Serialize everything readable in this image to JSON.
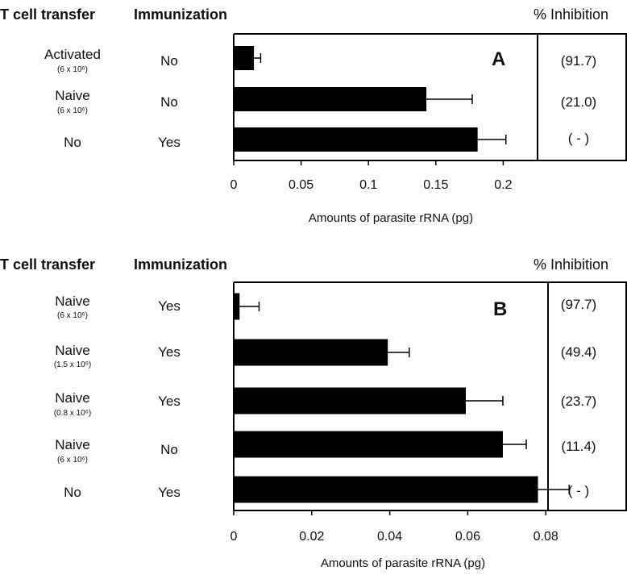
{
  "chart_data": [
    {
      "type": "bar",
      "orientation": "horizontal",
      "panel": "A",
      "col_headers": {
        "transfer": "T cell transfer",
        "immunization": "Immunization",
        "inhibition": "% Inhibition"
      },
      "rows": [
        {
          "transfer": "Activated",
          "dose": "(6 x 10⁶)",
          "immunization": "No",
          "value": 0.015,
          "error": 0.005,
          "inhibition": "(91.7)"
        },
        {
          "transfer": "Naive",
          "dose": "(6 x 10⁶)",
          "immunization": "No",
          "value": 0.143,
          "error": 0.034,
          "inhibition": "(21.0)"
        },
        {
          "transfer": "No",
          "dose": "",
          "immunization": "Yes",
          "value": 0.181,
          "error": 0.021,
          "inhibition": "( - )"
        }
      ],
      "xlabel": "Amounts of parasite rRNA (pg)",
      "xlim": [
        0,
        0.225
      ],
      "xticks": [
        0,
        0.05,
        0.1,
        0.15,
        0.2
      ],
      "xtick_labels": [
        "0",
        "0.05",
        "0.1",
        "0.15",
        "0.2"
      ]
    },
    {
      "type": "bar",
      "orientation": "horizontal",
      "panel": "B",
      "col_headers": {
        "transfer": "T cell transfer",
        "immunization": "Immunization",
        "inhibition": "% Inhibition"
      },
      "rows": [
        {
          "transfer": "Naive",
          "dose": "(6 x 10⁶)",
          "immunization": "Yes",
          "value": 0.0015,
          "error": 0.005,
          "inhibition": "(97.7)"
        },
        {
          "transfer": "Naive",
          "dose": "(1.5 x 10⁶)",
          "immunization": "Yes",
          "value": 0.0395,
          "error": 0.0055,
          "inhibition": "(49.4)"
        },
        {
          "transfer": "Naive",
          "dose": "(0.8 x 10⁶)",
          "immunization": "Yes",
          "value": 0.0595,
          "error": 0.0095,
          "inhibition": "(23.7)"
        },
        {
          "transfer": "Naive",
          "dose": "(6 x 10⁶)",
          "immunization": "No",
          "value": 0.069,
          "error": 0.006,
          "inhibition": "(11.4)"
        },
        {
          "transfer": "No",
          "dose": "",
          "immunization": "Yes",
          "value": 0.078,
          "error": 0.008,
          "inhibition": "( - )"
        }
      ],
      "xlabel": "Amounts of parasite rRNA (pg)",
      "xlim": [
        0,
        0.09
      ],
      "xticks": [
        0,
        0.02,
        0.04,
        0.06,
        0.08
      ],
      "xtick_labels": [
        "0",
        "0.02",
        "0.04",
        "0.06",
        "0.08"
      ]
    }
  ],
  "colors": {
    "bar": "#000000",
    "axis": "#000000"
  }
}
